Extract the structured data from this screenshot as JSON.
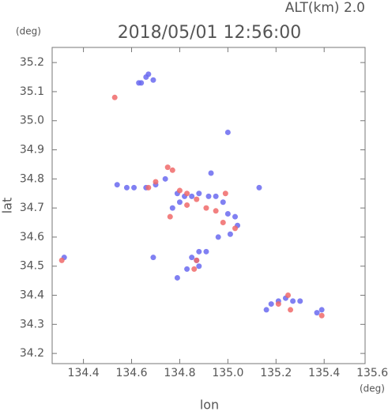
{
  "chart_data": {
    "type": "scatter",
    "title": "2018/05/01 12:56:00",
    "subtitle": "ALT(km) 2.0",
    "y_unit": "(deg)",
    "x_unit": "(deg)",
    "xlabel": "lon",
    "ylabel": "lat",
    "xlim": [
      134.27,
      135.57
    ],
    "ylim": [
      34.165,
      35.252
    ],
    "xticks": [
      134.4,
      134.6,
      134.8,
      {
        "value": 135,
        "label": "135.0"
      },
      135.2,
      135.4,
      135.6
    ],
    "yticks": [
      34.2,
      34.3,
      34.4,
      34.5,
      34.6,
      34.7,
      34.8,
      34.9,
      {
        "value": 35,
        "label": "35.0"
      },
      35.1,
      35.2
    ],
    "series": [
      {
        "color": "#6a6af0",
        "x": [
          134.66,
          134.64,
          134.67,
          134.63,
          134.69,
          134.54,
          134.58,
          134.61,
          134.66,
          134.7,
          134.74,
          134.79,
          134.82,
          134.85,
          134.88,
          134.92,
          134.95,
          134.98,
          135.0,
          135.03,
          135.04,
          135.01,
          134.96,
          134.8,
          134.77,
          134.85,
          134.87,
          134.88,
          134.91,
          134.83,
          134.88,
          134.32,
          135.16,
          135.18,
          135.21,
          135.24,
          135.27,
          135.3,
          135.37,
          135.39,
          135.0,
          134.93,
          135.13,
          134.79,
          134.69
        ],
        "values": [
          35.15,
          35.13,
          35.16,
          35.13,
          35.14,
          34.78,
          34.77,
          34.77,
          34.77,
          34.78,
          34.8,
          34.75,
          34.74,
          34.74,
          34.75,
          34.74,
          34.74,
          34.72,
          34.68,
          34.67,
          34.64,
          34.61,
          34.6,
          34.72,
          34.7,
          34.53,
          34.52,
          34.55,
          34.55,
          34.49,
          34.5,
          34.53,
          34.35,
          34.37,
          34.38,
          34.39,
          34.38,
          34.38,
          34.34,
          34.35,
          34.96,
          34.82,
          34.77,
          34.46,
          34.53
        ]
      },
      {
        "color": "#f06a6a",
        "x": [
          134.53,
          134.67,
          134.7,
          134.75,
          134.77,
          134.8,
          134.83,
          134.87,
          134.91,
          134.95,
          134.98,
          135.03,
          134.76,
          134.86,
          134.87,
          134.31,
          135.21,
          135.25,
          135.26,
          135.39,
          134.99,
          134.83
        ],
        "values": [
          35.08,
          34.77,
          34.79,
          34.84,
          34.83,
          34.76,
          34.75,
          34.73,
          34.7,
          34.69,
          34.65,
          34.63,
          34.67,
          34.49,
          34.52,
          34.52,
          34.37,
          34.4,
          34.35,
          34.33,
          34.75,
          34.71
        ]
      }
    ]
  }
}
